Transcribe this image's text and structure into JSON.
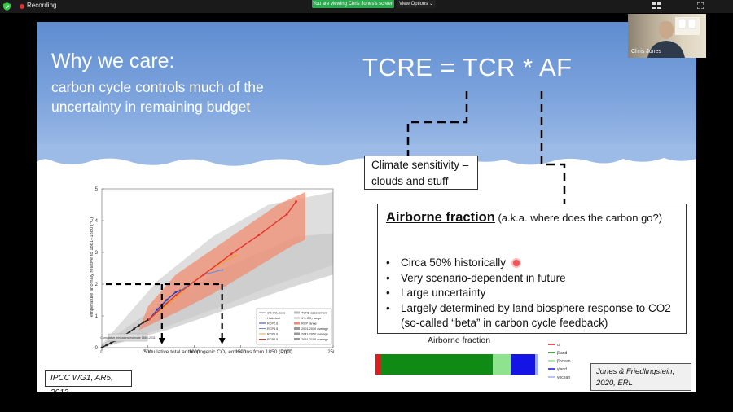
{
  "zoom_bar": {
    "recording_label": "Recording",
    "recording_color": "#e03030",
    "viewing_banner": "You are viewing Chris Jones's screen",
    "view_options_label": "View Options ⌄",
    "icons": [
      "shield-check-icon",
      "gallery-view-icon",
      "fullscreen-icon"
    ]
  },
  "participant": {
    "name": "Chris Jones"
  },
  "slide": {
    "title": "Why we care:",
    "subtitle": "carbon cycle controls much of the uncertainty in remaining budget",
    "equation": "TCRE = TCR * AF",
    "climate_box": "Climate sensitivity – clouds and stuff",
    "af_heading_bold": "Airborne fraction",
    "af_heading_rest": " (a.k.a. where does the carbon go?)",
    "bullets": [
      "Circa 50% historically",
      "Very scenario-dependent in future",
      "Large uncertainty",
      "Largely determined by land biosphere response to CO2 (so-called “beta” in carbon cycle feedback)"
    ],
    "citation_left": "IPCC WG1, AR5, 2013",
    "citation_right": "Jones & Friedlingstein, 2020, ERL"
  },
  "chart_data": [
    {
      "type": "line",
      "xlabel": "Cumulative total anthropogenic CO₂ emissions from 1850 (PgC)",
      "ylabel": "Temperature anomaly relative to 1861–1880 (°C)",
      "xlim": [
        0,
        2500
      ],
      "ylim": [
        0,
        5
      ],
      "x_ticks": [
        "0",
        "500",
        "1000",
        "1500",
        "2000",
        "2500"
      ],
      "y_ticks": [
        "0",
        "1",
        "2",
        "3",
        "4",
        "5"
      ],
      "series": [
        {
          "name": "Historical",
          "color": "#222222",
          "x": [
            0,
            50,
            100,
            150,
            200,
            250,
            300,
            350,
            400,
            450,
            500,
            515
          ],
          "y": [
            0,
            0.08,
            0.15,
            0.22,
            0.3,
            0.4,
            0.5,
            0.6,
            0.7,
            0.8,
            0.88,
            0.9
          ]
        },
        {
          "name": "RCP2.6",
          "color": "#2a3fb5",
          "x": [
            515,
            600,
            700,
            800,
            850
          ],
          "y": [
            0.9,
            1.2,
            1.5,
            1.75,
            1.8
          ]
        },
        {
          "name": "RCP4.5",
          "color": "#6c8fd8",
          "x": [
            515,
            700,
            900,
            1100,
            1300
          ],
          "y": [
            0.9,
            1.4,
            1.9,
            2.3,
            2.45
          ]
        },
        {
          "name": "RCP6.0",
          "color": "#f0a030",
          "x": [
            515,
            750,
            1000,
            1250,
            1450
          ],
          "y": [
            0.9,
            1.45,
            2.1,
            2.6,
            2.9
          ]
        },
        {
          "name": "RCP8.5",
          "color": "#e8302a",
          "x": [
            515,
            800,
            1100,
            1400,
            1700,
            2000,
            2100
          ],
          "y": [
            0.9,
            1.65,
            2.3,
            2.95,
            3.55,
            4.2,
            4.6
          ]
        }
      ],
      "ranges": [
        {
          "name": "TCRE assessment",
          "color": "#c8c8c8"
        },
        {
          "name": "RCP range",
          "color": "#f08c70"
        },
        {
          "name": "1% CO₂ range",
          "color": "#d8d8d8"
        }
      ],
      "legend": [
        "1% CO₂ runs",
        "Historical",
        "RCP2.6",
        "RCP4.5",
        "RCP6.0",
        "RCP8.5",
        "TCRE assessment",
        "1% CO₂ range",
        "RCP range",
        "2001-2010 average",
        "2041-2050 average",
        "2091-2100 average"
      ],
      "inset_label": "Cumulative emissions estimate 1860-2011",
      "dashed_arrows_x": [
        650,
        1300
      ],
      "dashed_arrow_y": 2.0
    },
    {
      "type": "bar",
      "title": "Airborne fraction",
      "segments": [
        {
          "name": "α",
          "color": "#e31a1c",
          "value": 0.03
        },
        {
          "name": "βland",
          "color": "#0f8a14",
          "value": 0.69
        },
        {
          "name": "βocean",
          "color": "#8fe38f",
          "value": 0.11
        },
        {
          "name": "γland",
          "color": "#1414e6",
          "value": 0.15
        },
        {
          "name": "γocean",
          "color": "#9db0ee",
          "value": 0.02
        }
      ]
    }
  ]
}
